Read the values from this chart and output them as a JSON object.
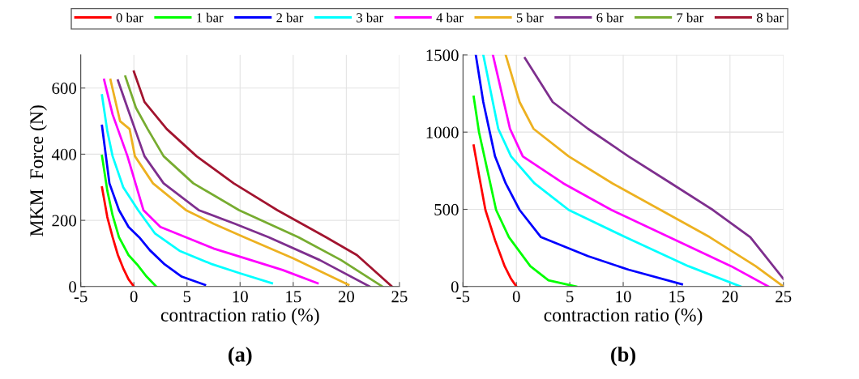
{
  "chart_data": [
    {
      "type": "line",
      "title": "(a)",
      "xlabel": "contraction ratio (%)",
      "ylabel": "MKM  Force (N)",
      "xlim": [
        -5,
        25
      ],
      "xticks": [
        -5,
        0,
        5,
        10,
        15,
        20,
        25
      ],
      "ylim": [
        0,
        700
      ],
      "yticks": [
        0,
        200,
        400,
        600
      ],
      "grid": true,
      "legend": "top",
      "marker": "none",
      "line_style": "solid",
      "series": [
        {
          "name": "0 bar",
          "color": "#ff0000",
          "x": [
            -3,
            -2.5,
            -2,
            -1.5,
            -1,
            -0.5,
            0
          ],
          "values": [
            300,
            210,
            149,
            95,
            55,
            22,
            0
          ]
        },
        {
          "name": "1 bar",
          "color": "#00ff00",
          "x": [
            -3,
            -2.5,
            -2,
            -1.4,
            -0.5,
            0.3,
            1.2,
            2.1
          ],
          "values": [
            395,
            290,
            215,
            149,
            95,
            67,
            30,
            0
          ]
        },
        {
          "name": "2 bar",
          "color": "#0000ff",
          "x": [
            -3,
            -2.3,
            -1.4,
            -0.5,
            0.5,
            1.5,
            2.9,
            4.5,
            6.7
          ],
          "values": [
            486,
            312,
            231,
            180,
            149,
            110,
            67,
            30,
            5
          ]
        },
        {
          "name": "3 bar",
          "color": "#00ffff",
          "x": [
            -3,
            -2.5,
            -2,
            -1,
            0.4,
            2,
            4.3,
            7.4,
            10,
            13
          ],
          "values": [
            578,
            470,
            394,
            300,
            231,
            160,
            108,
            67,
            40,
            10
          ]
        },
        {
          "name": "4 bar",
          "color": "#ff00ff",
          "x": [
            -2.8,
            -2,
            -0.6,
            0.9,
            2.5,
            4.9,
            7.5,
            10.7,
            14,
            17.3
          ],
          "values": [
            625,
            520,
            394,
            231,
            180,
            149,
            115,
            83,
            50,
            10
          ]
        },
        {
          "name": "5 bar",
          "color": "#edb120",
          "x": [
            -2.2,
            -1.3,
            -0.4,
            0.1,
            1.8,
            4.9,
            7.5,
            10.4,
            15,
            20.2
          ],
          "values": [
            625,
            500,
            476,
            394,
            312,
            231,
            190,
            149,
            85,
            5
          ]
        },
        {
          "name": "6 bar",
          "color": "#7e2f8e",
          "x": [
            -1.5,
            -0.6,
            0.1,
            1,
            2.8,
            6.1,
            9.5,
            12.7,
            17.5,
            22.2
          ],
          "values": [
            623,
            540,
            476,
            394,
            312,
            231,
            190,
            149,
            80,
            0
          ]
        },
        {
          "name": "7 bar",
          "color": "#77ac30",
          "x": [
            -0.8,
            0.2,
            1.3,
            2.8,
            5.6,
            9.9,
            15.5,
            19.5,
            23.4
          ],
          "values": [
            635,
            540,
            476,
            394,
            312,
            231,
            149,
            80,
            0
          ]
        },
        {
          "name": "8 bar",
          "color": "#a2142f",
          "x": [
            0,
            1,
            3.1,
            5.9,
            9.4,
            13.5,
            18.1,
            21,
            24.3
          ],
          "values": [
            650,
            558,
            476,
            394,
            312,
            231,
            149,
            95,
            0
          ]
        }
      ]
    },
    {
      "type": "line",
      "title": "(b)",
      "xlabel": "contraction ratio (%)",
      "xlim": [
        -5,
        25
      ],
      "xticks": [
        -5,
        0,
        5,
        10,
        15,
        20,
        25
      ],
      "ylim": [
        0,
        1500
      ],
      "yticks": [
        0,
        500,
        1000,
        1500
      ],
      "grid": true,
      "marker": "none",
      "line_style": "solid",
      "series": [
        {
          "name": "0 bar",
          "color": "#ff0000",
          "x": [
            -4,
            -3.5,
            -2.9,
            -2,
            -1.1,
            -0.5,
            0
          ],
          "values": [
            914,
            720,
            496,
            300,
            132,
            50,
            0
          ]
        },
        {
          "name": "1 bar",
          "color": "#00ff00",
          "x": [
            -4,
            -3.5,
            -3,
            -1.9,
            -0.7,
            1.3,
            3,
            5.6
          ],
          "values": [
            1230,
            1000,
            843,
            496,
            320,
            132,
            40,
            0
          ]
        },
        {
          "name": "2 bar",
          "color": "#0000ff",
          "x": [
            -3.8,
            -3.1,
            -2,
            -1,
            0.3,
            2.3,
            6.7,
            10.5,
            15.5
          ],
          "values": [
            1500,
            1195,
            843,
            668,
            496,
            320,
            197,
            109,
            15
          ]
        },
        {
          "name": "3 bar",
          "color": "#00ffff",
          "x": [
            -3.1,
            -1.7,
            -0.5,
            1.7,
            4.9,
            10.2,
            16.1,
            21
          ],
          "values": [
            1500,
            1022,
            843,
            668,
            496,
            320,
            132,
            0
          ]
        },
        {
          "name": "4 bar",
          "color": "#ff00ff",
          "x": [
            -2.2,
            -0.6,
            0.6,
            4.4,
            8.9,
            14.3,
            20.1,
            23.6
          ],
          "values": [
            1500,
            1022,
            843,
            668,
            496,
            320,
            132,
            0
          ]
        },
        {
          "name": "5 bar",
          "color": "#edb120",
          "x": [
            -1,
            0.3,
            1.6,
            4.9,
            9,
            13.5,
            18.1,
            22.4,
            25
          ],
          "values": [
            1500,
            1195,
            1022,
            843,
            668,
            496,
            320,
            132,
            0
          ]
        },
        {
          "name": "6 bar",
          "color": "#7e2f8e",
          "x": [
            0.8,
            3.4,
            6.7,
            10.5,
            14.5,
            18.4,
            21.9,
            25
          ],
          "values": [
            1480,
            1195,
            1022,
            843,
            668,
            496,
            320,
            50
          ]
        }
      ]
    }
  ]
}
